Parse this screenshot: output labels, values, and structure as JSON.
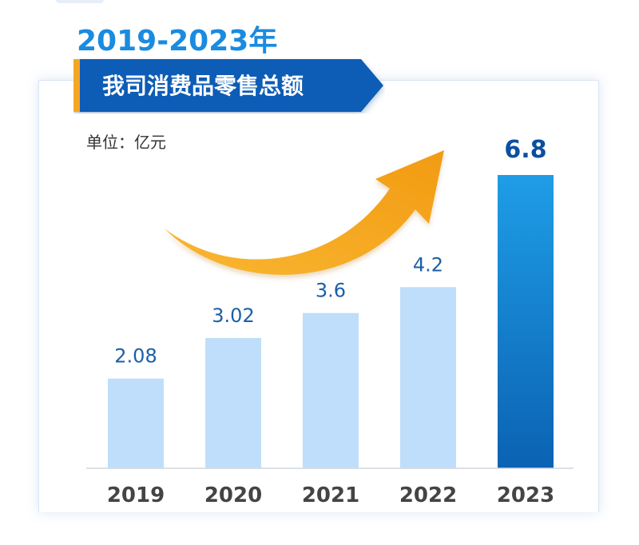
{
  "header": {
    "year_range": "2019-2023年",
    "subtitle": "我司消费品零售总额",
    "unit": "单位：亿元"
  },
  "colors": {
    "bar_light": "#bfdefb",
    "bar_highlight_top": "#1f9de6",
    "bar_highlight_bottom": "#0b62b3",
    "value_label": "#1c5fa8",
    "highlight_label": "#0b4fa0",
    "axis_label": "#444444",
    "arrow": "#f6ab1f",
    "title": "#1a8be0",
    "banner": "#0d5cb6",
    "banner_accent": "#f5a623"
  },
  "chart_data": {
    "type": "bar",
    "title": "我司消费品零售总额",
    "unit": "亿元",
    "categories": [
      "2019",
      "2020",
      "2021",
      "2022",
      "2023"
    ],
    "values": [
      2.08,
      3.02,
      3.6,
      4.2,
      6.8
    ],
    "value_labels": [
      "2.08",
      "3.02",
      "3.6",
      "4.2",
      "6.8"
    ],
    "highlight_index": 4,
    "ylim": [
      0,
      6.8
    ],
    "grid": false,
    "annotation": "upward-trend-arrow"
  }
}
